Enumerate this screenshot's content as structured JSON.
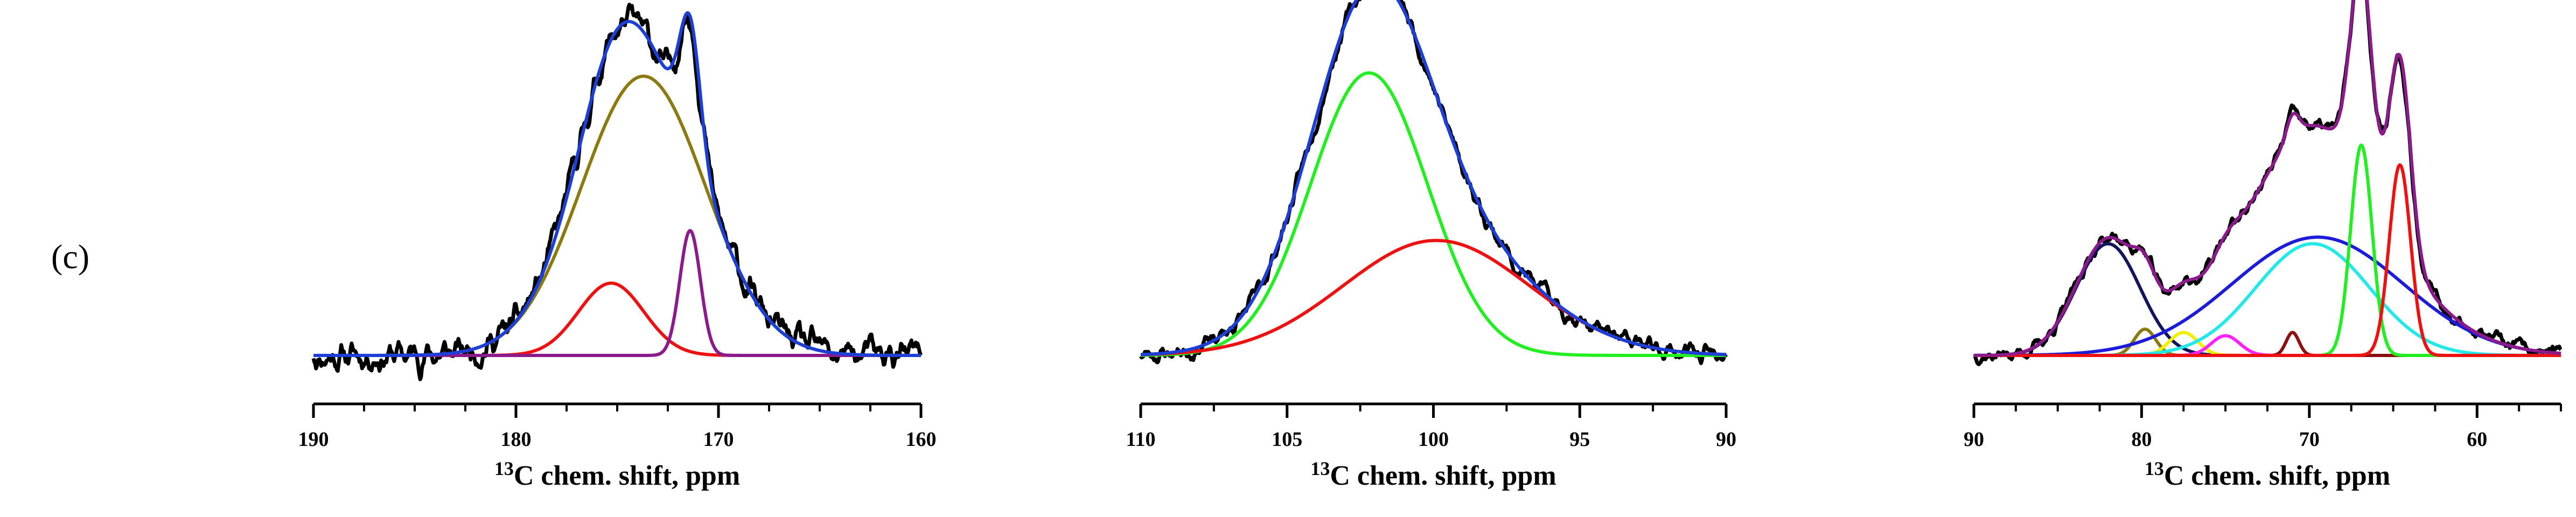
{
  "panel_label": "(c)",
  "chart_data": [
    {
      "type": "line",
      "title": "",
      "xlabel_sup": "13",
      "xlabel": "C chem. shift, ppm",
      "ylabel": "",
      "xlim": [
        190,
        160
      ],
      "xticks": [
        190,
        180,
        170,
        160
      ],
      "xtick_labels": [
        "190",
        "180",
        "170",
        "160"
      ],
      "ylim": [
        -0.15,
        1.08
      ],
      "grid": false,
      "series": [
        {
          "name": "experimental",
          "color": "#000000",
          "kind": "noisy_sum",
          "noise": 0.035,
          "seed": 11
        },
        {
          "name": "fit envelope",
          "color": "#1c3fd8",
          "kind": "sum"
        },
        {
          "name": "peak 173.7 ppm",
          "color": "#8a7a10",
          "kind": "gauss",
          "center": 173.7,
          "height": 0.85,
          "fwhm": 7.2
        },
        {
          "name": "peak 175.3 ppm",
          "color": "#ee1111",
          "kind": "gauss",
          "center": 175.3,
          "height": 0.22,
          "fwhm": 3.8
        },
        {
          "name": "peak 171.4 ppm",
          "color": "#8b1a8b",
          "kind": "gauss",
          "center": 171.4,
          "height": 0.38,
          "fwhm": 1.2
        }
      ]
    },
    {
      "type": "line",
      "title": "",
      "xlabel_sup": "13",
      "xlabel": "C chem. shift, ppm",
      "ylabel": "",
      "xlim": [
        110,
        90
      ],
      "xticks": [
        110,
        105,
        100,
        95,
        90
      ],
      "xtick_labels": [
        "110",
        "105",
        "100",
        "95",
        "90"
      ],
      "ylim": [
        -0.06,
        1.08
      ],
      "grid": false,
      "series": [
        {
          "name": "experimental",
          "color": "#000000",
          "kind": "noisy_sum",
          "noise": 0.02,
          "seed": 23
        },
        {
          "name": "fit envelope",
          "color": "#1c3fd8",
          "kind": "sum"
        },
        {
          "name": "peak 102.2 ppm",
          "color": "#22ee22",
          "kind": "gauss",
          "center": 102.2,
          "height": 0.86,
          "fwhm": 4.7
        },
        {
          "name": "peak 99.9 ppm",
          "color": "#ee1111",
          "kind": "gauss",
          "center": 99.9,
          "height": 0.35,
          "fwhm": 7.5
        }
      ]
    },
    {
      "type": "line",
      "title": "",
      "xlabel_sup": "13",
      "xlabel": "C chem. shift, ppm",
      "ylabel": "",
      "xlim": [
        90,
        55
      ],
      "xticks": [
        90,
        80,
        70,
        60
      ],
      "xtick_labels": [
        "90",
        "80",
        "70",
        "60"
      ],
      "ylim": [
        -0.06,
        1.08
      ],
      "grid": false,
      "series": [
        {
          "name": "experimental",
          "color": "#000000",
          "kind": "noisy_sum",
          "noise": 0.015,
          "seed": 37
        },
        {
          "name": "fit envelope",
          "color": "#8b1a8b",
          "kind": "sum"
        },
        {
          "name": "peak 82.0 ppm",
          "color": "#14145e",
          "kind": "gauss",
          "center": 82.0,
          "height": 0.34,
          "fwhm": 4.5
        },
        {
          "name": "peak 79.8 ppm",
          "color": "#8a7a10",
          "kind": "gauss",
          "center": 79.8,
          "height": 0.08,
          "fwhm": 1.5
        },
        {
          "name": "peak 77.5 ppm",
          "color": "#f0f000",
          "kind": "gauss",
          "center": 77.5,
          "height": 0.07,
          "fwhm": 2.0
        },
        {
          "name": "peak 75.0 ppm",
          "color": "#ff22ff",
          "kind": "gauss",
          "center": 75.0,
          "height": 0.06,
          "fwhm": 2.0
        },
        {
          "name": "peak 71.0 ppm",
          "color": "#8b1010",
          "kind": "gauss",
          "center": 71.0,
          "height": 0.07,
          "fwhm": 0.9
        },
        {
          "name": "peak 69.8 ppm",
          "color": "#22e8e8",
          "kind": "gauss",
          "center": 69.8,
          "height": 0.34,
          "fwhm": 8.0
        },
        {
          "name": "peak 69.5 ppm",
          "color": "#1c1cd8",
          "kind": "gauss",
          "center": 69.5,
          "height": 0.36,
          "fwhm": 12.0
        },
        {
          "name": "peak 66.9 ppm",
          "color": "#22ee22",
          "kind": "gauss",
          "center": 66.9,
          "height": 0.64,
          "fwhm": 1.5
        },
        {
          "name": "peak 64.6 ppm",
          "color": "#ee1111",
          "kind": "gauss",
          "center": 64.6,
          "height": 0.58,
          "fwhm": 1.5
        }
      ]
    }
  ]
}
